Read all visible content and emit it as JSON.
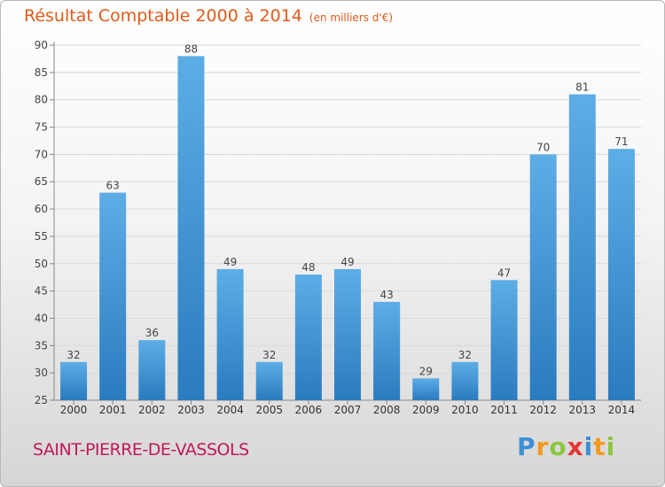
{
  "chart_data": {
    "type": "bar",
    "title": "Résultat Comptable 2000 à 2014",
    "unit_label": "(en milliers d'€)",
    "categories": [
      "2000",
      "2001",
      "2002",
      "2003",
      "2004",
      "2005",
      "2006",
      "2007",
      "2008",
      "2009",
      "2010",
      "2011",
      "2012",
      "2013",
      "2014"
    ],
    "values": [
      32,
      63,
      36,
      88,
      49,
      32,
      48,
      49,
      43,
      29,
      32,
      47,
      70,
      81,
      71
    ],
    "ylim": [
      25,
      90
    ],
    "yticks": [
      25,
      30,
      35,
      40,
      45,
      50,
      55,
      60,
      65,
      70,
      75,
      80,
      85,
      90
    ],
    "grid": true,
    "xlabel": "",
    "ylabel": ""
  },
  "footer": {
    "commune": "SAINT-PIERRE-DE-VASSOLS"
  },
  "logo": {
    "letters": [
      "P",
      "r",
      "o",
      "x",
      "i",
      "t",
      "i"
    ],
    "colors": [
      "#3d8fd6",
      "#f39a1f",
      "#8cc63f",
      "#e53935",
      "#3d8fd6",
      "#f39a1f",
      "#8cc63f"
    ]
  },
  "colors": {
    "bar_top": "#5dade6",
    "bar_bottom": "#2a7bbf",
    "title": "#e05a1a",
    "commune": "#c2185b"
  }
}
